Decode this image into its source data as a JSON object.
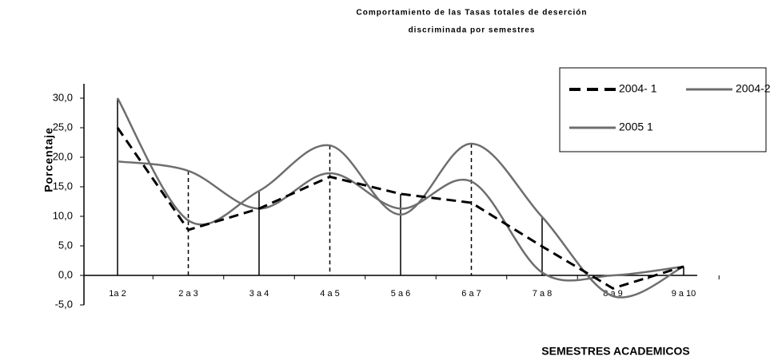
{
  "chart_data": {
    "type": "line",
    "title": "Comportamiento de las Tasas totales de deserción",
    "subtitle": "discriminada por semestres",
    "y_label": "Porcentaje",
    "x_label": "SEMESTRES ACADEMICOS",
    "categories": [
      "1a 2",
      "2 a 3",
      "3 a 4",
      "4 a 5",
      "5 a 6",
      "6 a 7",
      "7 a 8",
      "8 a 9",
      "9 a 10"
    ],
    "series": [
      {
        "name": "2004- 1",
        "color": "#000000",
        "dash": true,
        "smooth": false,
        "values": [
          25.0,
          7.7,
          11.3,
          16.7,
          13.8,
          12.3,
          4.9,
          -2.2,
          1.5
        ]
      },
      {
        "name": "2004-2",
        "color": "#6e6e6e",
        "dash": false,
        "smooth": true,
        "values": [
          19.3,
          17.7,
          11.3,
          17.3,
          11.3,
          15.9,
          0.5,
          0.0,
          1.5
        ]
      },
      {
        "name": "2005 1",
        "color": "#6e6e6e",
        "dash": false,
        "smooth": true,
        "values": [
          30.0,
          9.3,
          14.3,
          22.0,
          10.3,
          22.3,
          9.9,
          -3.5,
          1.5
        ]
      }
    ],
    "ylim": [
      -5,
      30
    ],
    "yticks": [
      {
        "value": -5,
        "label": "-5,0"
      },
      {
        "value": 0,
        "label": "0,0"
      },
      {
        "value": 5,
        "label": "5,0"
      },
      {
        "value": 10,
        "label": "10,0"
      },
      {
        "value": 15,
        "label": "15,0"
      },
      {
        "value": 20,
        "label": "20,0"
      },
      {
        "value": 25,
        "label": "25,0"
      },
      {
        "value": 30,
        "label": "30,0"
      }
    ],
    "drop_lines": true,
    "legend": "top-right"
  }
}
